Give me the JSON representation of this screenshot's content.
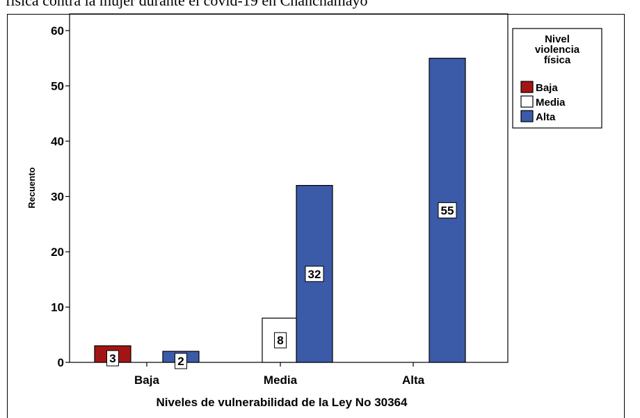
{
  "caption": "física contra la mujer durante el covid-19 en Chanchamayo",
  "chart_data": {
    "type": "bar",
    "title": "",
    "xlabel": "Niveles de vulnerabilidad de la Ley No 30364",
    "ylabel": "Recuento",
    "categories": [
      "Baja",
      "Media",
      "Alta"
    ],
    "ylim": [
      0,
      62
    ],
    "yticks": [
      0,
      10,
      20,
      30,
      40,
      50,
      60
    ],
    "legend": {
      "title": [
        "Nivel",
        "violencia",
        "física"
      ],
      "placement": "right"
    },
    "series": [
      {
        "name": "Baja",
        "color": "#a31515",
        "values": [
          3,
          0,
          0
        ]
      },
      {
        "name": "Media",
        "color": "#ffffff",
        "values": [
          0,
          8,
          0
        ]
      },
      {
        "name": "Alta",
        "color": "#3b5aa8",
        "values": [
          2,
          32,
          55
        ]
      }
    ]
  }
}
